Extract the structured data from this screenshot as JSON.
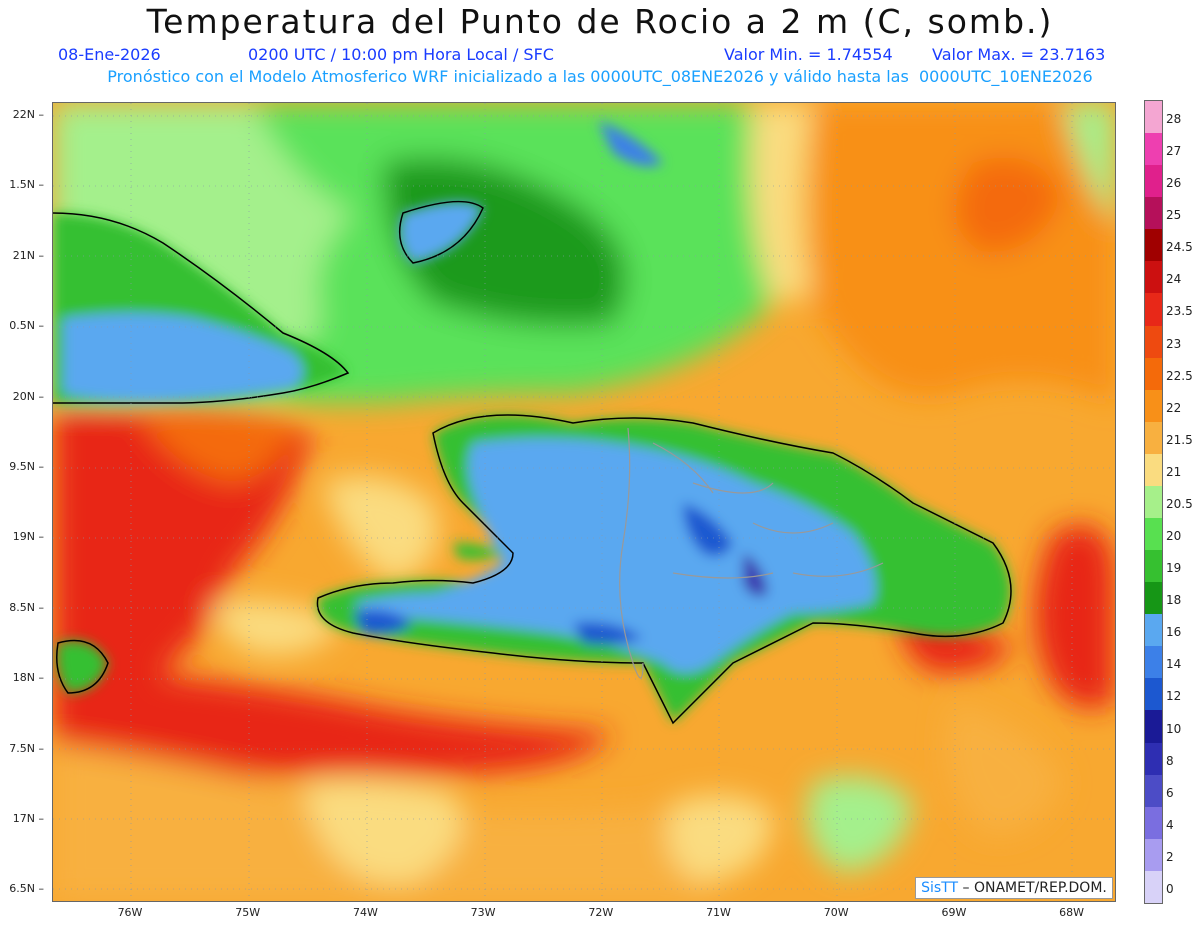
{
  "title": "Temperatura del Punto de Rocio a 2 m (C, somb.)",
  "subtitle": {
    "date": "08-Ene-2026",
    "time": "0200 UTC / 10:00 pm Hora Local / SFC",
    "min": "Valor Min. = 1.74554",
    "max": "Valor Max. = 23.7163"
  },
  "description": "Pronóstico con el Modelo Atmosferico WRF inicializado a las 0000UTC_08ENE2026 y válido hasta las  0000UTC_10ENE2026",
  "axes": {
    "lat_labels": [
      "22N",
      "1.5N",
      "21N",
      "0.5N",
      "20N",
      "9.5N",
      "19N",
      "8.5N",
      "18N",
      "7.5N",
      "17N",
      "6.5N"
    ],
    "lon_labels": [
      "76W",
      "75W",
      "74W",
      "73W",
      "72W",
      "71W",
      "70W",
      "69W",
      "68W"
    ]
  },
  "colorbar": {
    "labels": [
      "28",
      "27",
      "26",
      "25",
      "24.5",
      "24",
      "23.5",
      "23",
      "22.5",
      "22",
      "21.5",
      "21",
      "20.5",
      "20",
      "19",
      "18",
      "16",
      "14",
      "12",
      "10",
      "8",
      "6",
      "4",
      "2",
      "0"
    ],
    "colors": [
      "#f4a6d2",
      "#ee3fb0",
      "#e0208c",
      "#b5105a",
      "#a00000",
      "#cc1010",
      "#e82818",
      "#ee4a10",
      "#f46a0a",
      "#f89018",
      "#f8b040",
      "#fadc80",
      "#a6f08a",
      "#58e050",
      "#36c030",
      "#169616",
      "#5aa8f0",
      "#3c80e8",
      "#1c58d0",
      "#1a1a96",
      "#2e2eb2",
      "#4c4cc6",
      "#7a6ee0",
      "#a89cf0",
      "#d8d2f8"
    ]
  },
  "credit": {
    "brand": "SisTT",
    "text": "– ONAMET/REP.DOM."
  }
}
